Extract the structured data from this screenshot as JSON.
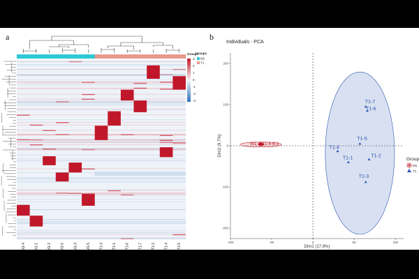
{
  "figure": {
    "panel_a_label": "a",
    "panel_b_label": "b"
  },
  "chart_data": [
    {
      "type": "heatmap",
      "samples": [
        "M1-4",
        "M1-1",
        "M1-2",
        "M1-6",
        "M1-3",
        "M1-5",
        "T1-3",
        "T1-1",
        "T1-6",
        "T1-7",
        "T1-2",
        "T1-4",
        "T1-5"
      ],
      "sample_groups": [
        "M1",
        "M1",
        "M1",
        "M1",
        "M1",
        "M1",
        "T1",
        "T1",
        "T1",
        "T1",
        "T1",
        "T1",
        "T1"
      ],
      "legend": {
        "color_scale_ticks": [
          "3",
          "2",
          "1",
          "0",
          "-1",
          "-2",
          "-3"
        ],
        "group_title": "Groups",
        "group_entries": [
          {
            "name": "M1",
            "color": "#2ec9d6"
          },
          {
            "name": "T1",
            "color": "#e8998d"
          }
        ]
      },
      "colors": {
        "high": "#c0182a",
        "mid": "#eef3f9",
        "low": "#2b73b6"
      },
      "blocks": [
        {
          "sample": "M1-4",
          "row_start": 0.805,
          "row_end": 0.865
        },
        {
          "sample": "M1-1",
          "row_start": 0.865,
          "row_end": 0.925
        },
        {
          "sample": "M1-2",
          "row_start": 0.535,
          "row_end": 0.585
        },
        {
          "sample": "M1-6",
          "row_start": 0.625,
          "row_end": 0.675
        },
        {
          "sample": "M1-3",
          "row_start": 0.57,
          "row_end": 0.625
        },
        {
          "sample": "M1-5",
          "row_start": 0.745,
          "row_end": 0.81
        },
        {
          "sample": "T1-3",
          "row_start": 0.365,
          "row_end": 0.445
        },
        {
          "sample": "T1-1",
          "row_start": 0.285,
          "row_end": 0.365
        },
        {
          "sample": "T1-6",
          "row_start": 0.165,
          "row_end": 0.225
        },
        {
          "sample": "T1-7",
          "row_start": 0.225,
          "row_end": 0.29
        },
        {
          "sample": "T1-2",
          "row_start": 0.03,
          "row_end": 0.105
        },
        {
          "sample": "T1-4",
          "row_start": 0.485,
          "row_end": 0.54
        },
        {
          "sample": "T1-5",
          "row_start": 0.09,
          "row_end": 0.165
        }
      ]
    },
    {
      "type": "scatter",
      "title": "Individuals - PCA",
      "xlabel": "Dim1 (17.9%)",
      "ylabel": "Dim2 (9.7%)",
      "xlim": [
        -100,
        110
      ],
      "ylim": [
        -225,
        225
      ],
      "x_ticks": [
        "-100",
        "-50",
        "0",
        "50",
        "100"
      ],
      "y_ticks": [
        "-200",
        "-100",
        "0",
        "100",
        "200"
      ],
      "legend": {
        "title": "Groups",
        "entries": [
          "M1",
          "T1"
        ]
      },
      "series": [
        {
          "name": "M1",
          "color": "#c0182a",
          "marker": "circle",
          "points": [
            {
              "label": "M1-3",
              "x": -63,
              "y": 3
            },
            {
              "label": "M1-4",
              "x": -65,
              "y": 4
            },
            {
              "label": "M1-5",
              "x": -63,
              "y": 5
            },
            {
              "label": "M1-2",
              "x": -64,
              "y": 2
            },
            {
              "label": "M1-1",
              "x": -63,
              "y": 6
            },
            {
              "label": "M1-6",
              "x": -61,
              "y": 3
            }
          ],
          "label_text": "M1-3M1-4-6-1",
          "ellipse": {
            "cx": -63,
            "cy": 3,
            "rx": 25,
            "ry": 6
          }
        },
        {
          "name": "T1",
          "color": "#2b55b3",
          "marker": "triangle",
          "points": [
            {
              "label": "T1-7",
              "x": 64,
              "y": 95
            },
            {
              "label": "T1-6",
              "x": 66,
              "y": 85
            },
            {
              "label": "T1-5",
              "x": 57,
              "y": 5
            },
            {
              "label": "T1-4",
              "x": 30,
              "y": -13
            },
            {
              "label": "T1-1",
              "x": 43,
              "y": -40
            },
            {
              "label": "T1-2",
              "x": 68,
              "y": -33
            },
            {
              "label": "T1-3",
              "x": 64,
              "y": -88
            }
          ],
          "ellipse": {
            "cx": 57,
            "cy": -18,
            "rx": 42,
            "ry": 197
          }
        }
      ]
    }
  ]
}
